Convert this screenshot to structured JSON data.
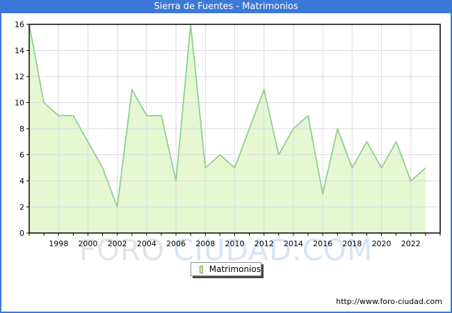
{
  "window": {
    "title": "Sierra de Fuentes - Matrimonios"
  },
  "colors": {
    "accent": "#3c78d8",
    "area": "#e5f8d2",
    "line": "#8fce8f",
    "grid": "#d9d9e2",
    "frame": "#000000",
    "legend_swatch": "#cbee9b",
    "watermark_gray": "#e4e4e4",
    "watermark_blue": "#d8e4f6"
  },
  "chart_data": {
    "type": "area",
    "title": "Sierra de Fuentes - Matrimonios",
    "xlabel": "",
    "ylabel": "",
    "xlim": [
      1996,
      2024
    ],
    "ylim": [
      0,
      16
    ],
    "y_ticks": [
      0,
      2,
      4,
      6,
      8,
      10,
      12,
      14,
      16
    ],
    "x_tick_years": [
      1998,
      2000,
      2002,
      2004,
      2006,
      2008,
      2010,
      2012,
      2014,
      2016,
      2018,
      2020,
      2022
    ],
    "grid": true,
    "legend_position": "bottom-center",
    "series": [
      {
        "name": "Matrimonios",
        "x": [
          1996,
          1997,
          1998,
          1999,
          2000,
          2001,
          2002,
          2003,
          2004,
          2005,
          2006,
          2007,
          2008,
          2009,
          2010,
          2011,
          2012,
          2013,
          2014,
          2015,
          2016,
          2017,
          2018,
          2019,
          2020,
          2021,
          2022,
          2023
        ],
        "values": [
          16,
          10,
          9,
          9,
          7,
          5,
          2,
          11,
          9,
          9,
          4,
          16,
          5,
          6,
          5,
          8,
          11,
          6,
          8,
          9,
          3,
          8,
          5,
          7,
          5,
          7,
          4,
          5
        ]
      }
    ]
  },
  "legend": {
    "label": "Matrimonios"
  },
  "watermark": {
    "part1": "FORO",
    "part2": "CIUDAD.COM"
  },
  "footer": {
    "url": "http://www.foro-ciudad.com"
  }
}
